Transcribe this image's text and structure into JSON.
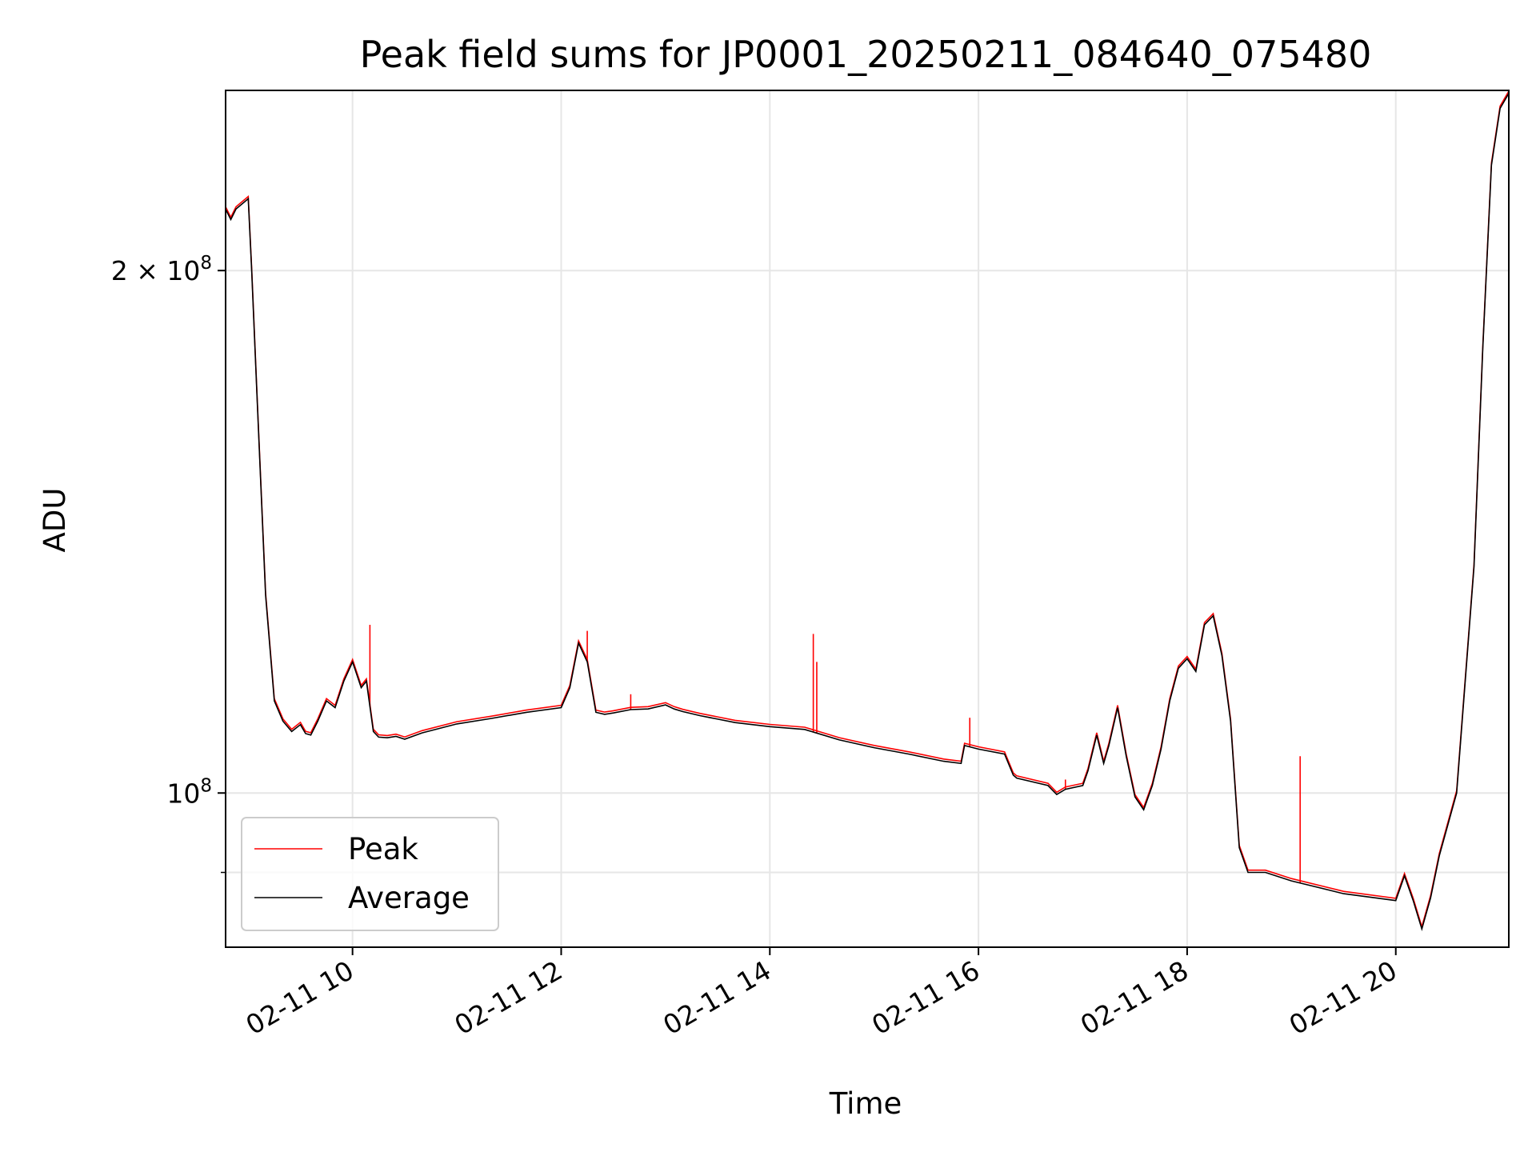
{
  "chart_data": {
    "type": "line",
    "title": "Peak field sums for JP0001_20250211_084640_075480",
    "xlabel": "Time",
    "ylabel": "ADU",
    "y_scale": "log",
    "ylim": [
      81500000,
      254000000
    ],
    "xlim": [
      "2025-02-11 08:47",
      "2025-02-11 21:05"
    ],
    "grid": true,
    "legend_position": "lower-left",
    "x_ticks": [
      {
        "t": "2025-02-11 10:00",
        "label": "02-11 10"
      },
      {
        "t": "2025-02-11 12:00",
        "label": "02-11 12"
      },
      {
        "t": "2025-02-11 14:00",
        "label": "02-11 14"
      },
      {
        "t": "2025-02-11 16:00",
        "label": "02-11 16"
      },
      {
        "t": "2025-02-11 18:00",
        "label": "02-11 18"
      },
      {
        "t": "2025-02-11 20:00",
        "label": "02-11 20"
      }
    ],
    "y_major_ticks": [
      {
        "value": 200000000,
        "base": "2 × 10",
        "exp": "8"
      },
      {
        "value": 100000000,
        "base": "10",
        "exp": "8"
      }
    ],
    "y_minor_ticks": [
      90000000
    ],
    "series": [
      {
        "name": "Average",
        "color": "#000000",
        "x": [
          "08:47",
          "08:50",
          "08:53",
          "09:00",
          "09:02",
          "09:05",
          "09:10",
          "09:15",
          "09:20",
          "09:25",
          "09:30",
          "09:33",
          "09:36",
          "09:40",
          "09:45",
          "09:50",
          "09:55",
          "10:00",
          "10:05",
          "10:08",
          "10:12",
          "10:15",
          "10:20",
          "10:25",
          "10:30",
          "10:40",
          "11:00",
          "11:20",
          "11:40",
          "12:00",
          "12:05",
          "12:10",
          "12:15",
          "12:20",
          "12:25",
          "12:30",
          "12:40",
          "12:50",
          "13:00",
          "13:05",
          "13:10",
          "13:20",
          "13:30",
          "13:40",
          "14:00",
          "14:20",
          "14:40",
          "15:00",
          "15:20",
          "15:40",
          "15:50",
          "15:52",
          "16:00",
          "16:15",
          "16:20",
          "16:22",
          "16:40",
          "16:45",
          "16:50",
          "17:00",
          "17:03",
          "17:08",
          "17:12",
          "17:15",
          "17:20",
          "17:25",
          "17:30",
          "17:35",
          "17:40",
          "17:45",
          "17:50",
          "17:55",
          "18:00",
          "18:05",
          "18:10",
          "18:15",
          "18:20",
          "18:25",
          "18:30",
          "18:35",
          "18:45",
          "19:00",
          "19:30",
          "20:00",
          "20:05",
          "20:10",
          "20:15",
          "20:20",
          "20:25",
          "20:35",
          "20:45",
          "20:50",
          "20:55",
          "21:00",
          "21:05"
        ],
        "y": [
          217000000,
          214000000,
          217000000,
          220000000,
          200000000,
          170000000,
          130000000,
          113000000,
          110000000,
          108500000,
          109500000,
          108200000,
          108000000,
          110000000,
          113000000,
          112000000,
          116000000,
          119000000,
          115000000,
          116000000,
          108500000,
          107700000,
          107600000,
          107800000,
          107400000,
          108300000,
          109600000,
          110400000,
          111300000,
          112000000,
          115000000,
          122000000,
          119000000,
          111300000,
          111000000,
          111200000,
          111700000,
          111800000,
          112400000,
          111800000,
          111400000,
          110800000,
          110300000,
          109800000,
          109200000,
          108800000,
          107300000,
          106200000,
          105300000,
          104300000,
          104000000,
          106500000,
          106000000,
          105300000,
          102400000,
          102000000,
          101000000,
          99800000,
          100500000,
          101000000,
          103000000,
          108000000,
          104000000,
          106500000,
          112000000,
          105000000,
          99500000,
          97800000,
          101000000,
          106000000,
          113000000,
          118000000,
          119500000,
          117500000,
          125000000,
          126500000,
          120000000,
          110000000,
          93000000,
          90000000,
          90000000,
          89000000,
          87500000,
          86700000,
          89600000,
          86700000,
          83500000,
          87000000,
          92000000,
          100000000,
          135000000,
          180000000,
          230000000,
          248000000,
          253000000
        ]
      },
      {
        "name": "Peak",
        "color": "#ff0000",
        "spikes": [
          {
            "t": "10:10",
            "value": 125000000
          },
          {
            "t": "12:15",
            "value": 124000000
          },
          {
            "t": "12:40",
            "value": 114000000
          },
          {
            "t": "14:25",
            "value": 123500000
          },
          {
            "t": "14:27",
            "value": 119000000
          },
          {
            "t": "15:55",
            "value": 110500000
          },
          {
            "t": "16:50",
            "value": 101800000
          },
          {
            "t": "19:05",
            "value": 105000000
          }
        ]
      }
    ]
  }
}
